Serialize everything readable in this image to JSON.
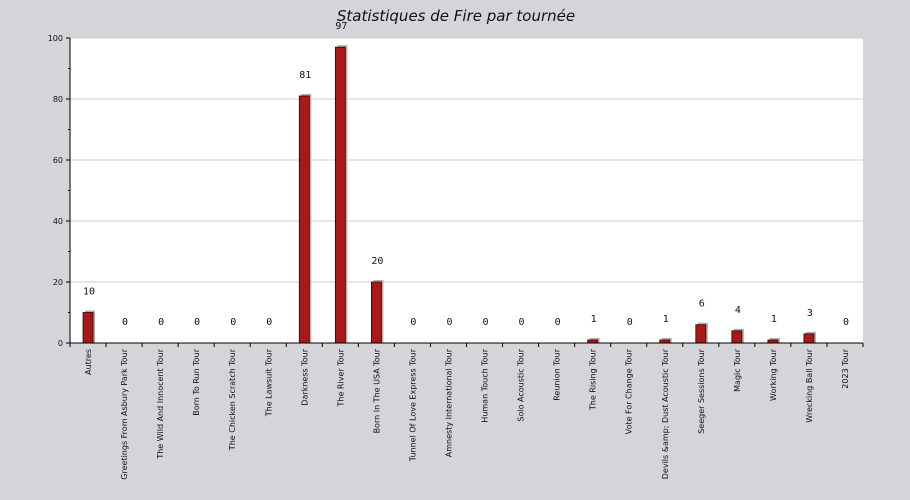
{
  "chart_data": {
    "type": "bar",
    "title": "Statistiques de Fire par tournée",
    "xlabel": "",
    "ylabel": "",
    "ylim": [
      0,
      100
    ],
    "yticks": [
      0,
      20,
      40,
      60,
      80,
      100
    ],
    "grid": true,
    "categories": [
      "Autres",
      "Greetings From Asbury Park Tour",
      "The Wild And Innocent Tour",
      "Born To Run Tour",
      "The Chicken Scratch Tour",
      "The Lawsuit Tour",
      "Darkness Tour",
      "The River Tour",
      "Born In The USA Tour",
      "Tunnel Of Love Express Tour",
      "Amnesty International Tour",
      "Human Touch Tour",
      "Solo Acoustic Tour",
      "Reunion Tour",
      "The Rising Tour",
      "Vote For Change Tour",
      "Devils &amp; Dust Acoustic Tour",
      "Seeger Sessions Tour",
      "Magic Tour",
      "Working Tour",
      "Wrecking Ball Tour",
      "2023 Tour"
    ],
    "values": [
      10,
      0,
      0,
      0,
      0,
      0,
      81,
      97,
      20,
      0,
      0,
      0,
      0,
      0,
      1,
      0,
      1,
      6,
      4,
      1,
      3,
      0
    ],
    "colors": {
      "bar": "#a8191a",
      "bar_shadow": "#b0b0b0",
      "plot_bg": "#ffffff",
      "page_bg": "#d5d4d8",
      "grid": "#cfcfcf",
      "axis": "#000000"
    }
  }
}
